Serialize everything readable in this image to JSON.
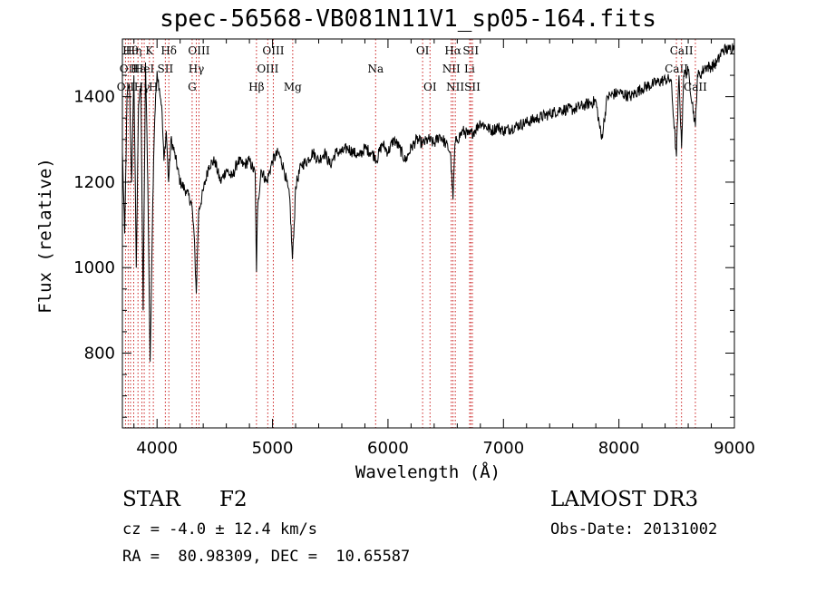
{
  "chart_data": {
    "type": "line",
    "title": "spec-56568-VB081N11V1_sp05-164.fits",
    "xlabel": "Wavelength (Å)",
    "ylabel": "Flux (relative)",
    "xlim": [
      3700,
      9000
    ],
    "ylim": [
      625,
      1535
    ],
    "xticks": [
      4000,
      5000,
      6000,
      7000,
      8000,
      9000
    ],
    "yticks": [
      800,
      1000,
      1200,
      1400
    ],
    "series": [
      {
        "name": "flux",
        "x": [
          3700,
          3720,
          3740,
          3760,
          3780,
          3800,
          3820,
          3840,
          3860,
          3880,
          3900,
          3920,
          3940,
          3960,
          3970,
          3980,
          4000,
          4020,
          4040,
          4060,
          4080,
          4100,
          4120,
          4150,
          4200,
          4250,
          4300,
          4320,
          4340,
          4360,
          4400,
          4450,
          4500,
          4550,
          4600,
          4650,
          4700,
          4750,
          4800,
          4850,
          4861,
          4870,
          4900,
          4950,
          5000,
          5050,
          5100,
          5150,
          5172,
          5183,
          5200,
          5250,
          5300,
          5350,
          5400,
          5450,
          5500,
          5550,
          5600,
          5650,
          5700,
          5750,
          5800,
          5850,
          5890,
          5900,
          5950,
          6000,
          6050,
          6100,
          6150,
          6200,
          6250,
          6300,
          6350,
          6400,
          6450,
          6500,
          6540,
          6563,
          6580,
          6600,
          6650,
          6700,
          6750,
          6800,
          6850,
          6900,
          6950,
          7000,
          7100,
          7200,
          7300,
          7400,
          7500,
          7600,
          7700,
          7800,
          7850,
          7900,
          8000,
          8100,
          8200,
          8300,
          8400,
          8450,
          8498,
          8520,
          8542,
          8560,
          8600,
          8662,
          8680,
          8700,
          8750,
          8800,
          8850,
          8900,
          8950,
          9000
        ],
        "y": [
          1270,
          1080,
          1400,
          1430,
          1200,
          1450,
          1000,
          1380,
          1430,
          900,
          1480,
          1200,
          780,
          1100,
          1250,
          1350,
          1460,
          1420,
          1380,
          1250,
          1320,
          1200,
          1300,
          1270,
          1200,
          1180,
          1150,
          1080,
          940,
          1130,
          1180,
          1240,
          1250,
          1200,
          1230,
          1210,
          1250,
          1240,
          1250,
          1220,
          990,
          1130,
          1230,
          1200,
          1250,
          1270,
          1230,
          1160,
          1020,
          1070,
          1190,
          1240,
          1250,
          1270,
          1250,
          1270,
          1240,
          1270,
          1270,
          1280,
          1270,
          1260,
          1280,
          1270,
          1260,
          1250,
          1290,
          1270,
          1300,
          1280,
          1250,
          1280,
          1300,
          1290,
          1300,
          1290,
          1310,
          1290,
          1270,
          1160,
          1290,
          1300,
          1320,
          1310,
          1320,
          1340,
          1330,
          1320,
          1330,
          1320,
          1330,
          1340,
          1350,
          1360,
          1370,
          1370,
          1380,
          1390,
          1300,
          1400,
          1410,
          1400,
          1420,
          1430,
          1440,
          1440,
          1260,
          1450,
          1280,
          1450,
          1460,
          1330,
          1450,
          1450,
          1470,
          1470,
          1480,
          1510,
          1510,
          1520
        ]
      }
    ],
    "lines": [
      {
        "wl": 3727,
        "label": "OII",
        "row": 2
      },
      {
        "wl": 3750,
        "label": "OII",
        "row": 1
      },
      {
        "wl": 3770,
        "label": "Hθ",
        "row": 0
      },
      {
        "wl": 3798,
        "label": "Hη",
        "row": 0
      },
      {
        "wl": 3835,
        "label": "Hε",
        "row": 1
      },
      {
        "wl": 3869,
        "label": "Hγ",
        "row": 2
      },
      {
        "wl": 3889,
        "label": "HeI",
        "row": 1
      },
      {
        "wl": 3934,
        "label": "K",
        "row": 0
      },
      {
        "wl": 3968,
        "label": "H",
        "row": 2
      },
      {
        "wl": 4072,
        "label": "SII",
        "row": 1
      },
      {
        "wl": 4102,
        "label": "Hδ",
        "row": 0
      },
      {
        "wl": 4304,
        "label": "G",
        "row": 2
      },
      {
        "wl": 4340,
        "label": "Hγ",
        "row": 1
      },
      {
        "wl": 4363,
        "label": "OIII",
        "row": 0
      },
      {
        "wl": 4861,
        "label": "Hβ",
        "row": 2
      },
      {
        "wl": 4959,
        "label": "OIII",
        "row": 1
      },
      {
        "wl": 5007,
        "label": "OIII",
        "row": 0
      },
      {
        "wl": 5175,
        "label": "Mg",
        "row": 2
      },
      {
        "wl": 5893,
        "label": "Na",
        "row": 1
      },
      {
        "wl": 6300,
        "label": "OI",
        "row": 0
      },
      {
        "wl": 6364,
        "label": "OI",
        "row": 2
      },
      {
        "wl": 6548,
        "label": "NII",
        "row": 1
      },
      {
        "wl": 6563,
        "label": "Hα",
        "row": 0
      },
      {
        "wl": 6583,
        "label": "NII",
        "row": 2
      },
      {
        "wl": 6707,
        "label": "Li",
        "row": 1
      },
      {
        "wl": 6717,
        "label": "SII",
        "row": 0
      },
      {
        "wl": 6731,
        "label": "SII",
        "row": 2
      },
      {
        "wl": 8498,
        "label": "CaII",
        "row": 1
      },
      {
        "wl": 8542,
        "label": "CaII",
        "row": 0
      },
      {
        "wl": 8662,
        "label": "CaII",
        "row": 2
      }
    ]
  },
  "info": {
    "class_label": "STAR",
    "subclass": "F2",
    "cz": "cz = -4.0 ± 12.4 km/s",
    "coords": "RA =  80.98309, DEC =  10.65587",
    "release": "LAMOST DR3",
    "obs_date": "Obs-Date: 20131002"
  }
}
